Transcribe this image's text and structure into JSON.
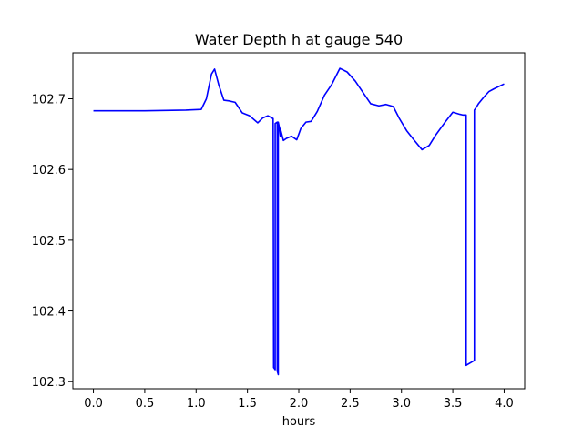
{
  "chart_data": {
    "type": "line",
    "title": "Water Depth h at gauge 540",
    "xlabel": "hours",
    "ylabel": "",
    "xlim": [
      -0.2,
      4.2
    ],
    "ylim": [
      102.29,
      102.765
    ],
    "xticks": [
      0.0,
      0.5,
      1.0,
      1.5,
      2.0,
      2.5,
      3.0,
      3.5,
      4.0
    ],
    "xtick_labels": [
      "0.0",
      "0.5",
      "1.0",
      "1.5",
      "2.0",
      "2.5",
      "3.0",
      "3.5",
      "4.0"
    ],
    "yticks": [
      102.3,
      102.4,
      102.5,
      102.6,
      102.7
    ],
    "ytick_labels": [
      "102.3",
      "102.4",
      "102.5",
      "102.6",
      "102.7"
    ],
    "grid": false,
    "series": [
      {
        "color": "#0000ff",
        "x": [
          0.0,
          0.5,
          0.9,
          1.05,
          1.1,
          1.15,
          1.18,
          1.22,
          1.27,
          1.32,
          1.38,
          1.45,
          1.52,
          1.6,
          1.65,
          1.7,
          1.75,
          1.755,
          1.77,
          1.77,
          1.79,
          1.79,
          1.8,
          1.8,
          1.81,
          1.82,
          1.82,
          1.85,
          1.88,
          1.93,
          1.98,
          2.02,
          2.07,
          2.12,
          2.18,
          2.25,
          2.32,
          2.4,
          2.47,
          2.55,
          2.62,
          2.7,
          2.78,
          2.85,
          2.92,
          2.98,
          3.05,
          3.12,
          3.2,
          3.27,
          3.33,
          3.42,
          3.5,
          3.57,
          3.6,
          3.63,
          3.63,
          3.64,
          3.71,
          3.71,
          3.72,
          3.75,
          3.8,
          3.85,
          3.9,
          4.0
        ],
        "y": [
          102.683,
          102.683,
          102.684,
          102.685,
          102.7,
          102.735,
          102.742,
          102.72,
          102.698,
          102.697,
          102.695,
          102.68,
          102.676,
          102.666,
          102.673,
          102.676,
          102.672,
          102.32,
          102.317,
          102.665,
          102.667,
          102.315,
          102.31,
          102.667,
          102.66,
          102.647,
          102.658,
          102.641,
          102.644,
          102.647,
          102.642,
          102.658,
          102.667,
          102.668,
          102.682,
          102.705,
          102.72,
          102.743,
          102.738,
          102.725,
          102.71,
          102.693,
          102.69,
          102.692,
          102.689,
          102.672,
          102.655,
          102.642,
          102.628,
          102.634,
          102.648,
          102.666,
          102.681,
          102.678,
          102.677,
          102.677,
          102.323,
          102.324,
          102.33,
          102.684,
          102.686,
          102.693,
          102.702,
          102.71,
          102.714,
          102.721
        ]
      }
    ]
  }
}
